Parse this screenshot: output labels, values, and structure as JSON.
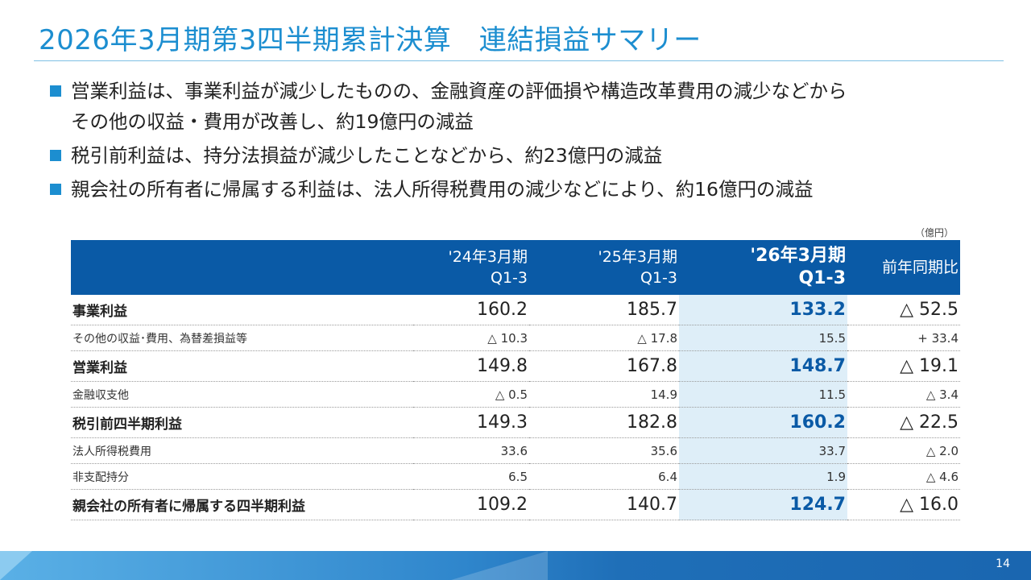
{
  "title": "2026年3月期第3四半期累計決算　連結損益サマリー",
  "bullets": [
    "営業利益は、事業利益が減少したものの、金融資産の評価損や構造改革費用の減少などから\nその他の収益・費用が改善し、約19億円の減益",
    "税引前利益は、持分法損益が減少したことなどから、約23億円の減益",
    "親会社の所有者に帰属する利益は、法人所得税費用の減少などにより、約16億円の減益"
  ],
  "unit": "（億円）",
  "table": {
    "headers": [
      "",
      "'24年3月期\nQ1-3",
      "'25年3月期\nQ1-3",
      "'26年3月期\nQ1-3",
      "前年同期比"
    ],
    "rows": [
      {
        "label": "事業利益",
        "v1": "160.2",
        "v2": "185.7",
        "v3": "133.2",
        "v4": "△ 52.5"
      },
      {
        "label": "その他の収益･費用、為替差損益等",
        "v1": "△ 10.3",
        "v2": "△ 17.8",
        "v3": "15.5",
        "v4": "+ 33.4"
      },
      {
        "label": "営業利益",
        "v1": "149.8",
        "v2": "167.8",
        "v3": "148.7",
        "v4": "△ 19.1"
      },
      {
        "label": "金融収支他",
        "v1": "△ 0.5",
        "v2": "14.9",
        "v3": "11.5",
        "v4": "△ 3.4"
      },
      {
        "label": "税引前四半期利益",
        "v1": "149.3",
        "v2": "182.8",
        "v3": "160.2",
        "v4": "△ 22.5"
      },
      {
        "label": "法人所得税費用",
        "v1": "33.6",
        "v2": "35.6",
        "v3": "33.7",
        "v4": "△ 2.0"
      },
      {
        "label": "非支配持分",
        "v1": "6.5",
        "v2": "6.4",
        "v3": "1.9",
        "v4": "△ 4.6"
      },
      {
        "label": "親会社の所有者に帰属する四半期利益",
        "v1": "109.2",
        "v2": "140.7",
        "v3": "124.7",
        "v4": "△ 16.0"
      }
    ]
  },
  "page_number": "14",
  "colors": {
    "accent": "#1c8ed0",
    "header_bg": "#0a5aa6",
    "highlight_bg": "#deeef8",
    "highlight_text": "#0a5aa6"
  }
}
